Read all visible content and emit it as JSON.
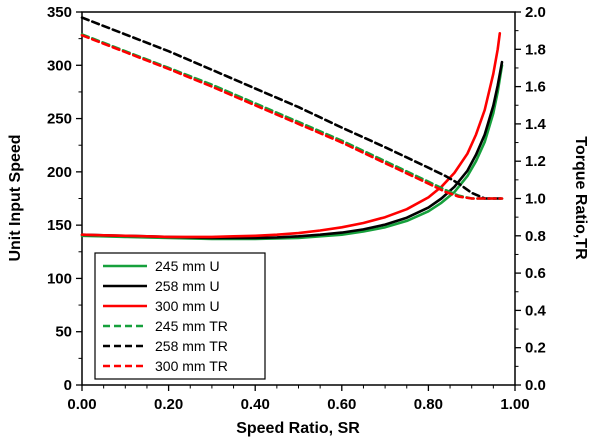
{
  "chart_data": {
    "type": "line",
    "title": "",
    "xlabel": "Speed Ratio, SR",
    "ylabel_left": "Unit Input Speed",
    "ylabel_right": "Torque Ratio,TR",
    "xlim": [
      0,
      1.0
    ],
    "ylim_left": [
      0,
      350
    ],
    "ylim_right": [
      0,
      2.0
    ],
    "grid": false,
    "legend_position": "lower-left",
    "colors": {
      "green": "#16a03c",
      "black": "#000000",
      "red": "#fe0000",
      "axis": "#000000",
      "background": "#ffffff"
    },
    "x_ticks": {
      "values": [
        0,
        0.2,
        0.4,
        0.6,
        0.8,
        1.0
      ],
      "labels": [
        "0.00",
        "0.20",
        "0.40",
        "0.60",
        "0.80",
        "1.00"
      ],
      "minor_step": 0.05
    },
    "y_ticks_left": {
      "values": [
        0,
        50,
        100,
        150,
        200,
        250,
        300,
        350
      ],
      "labels": [
        "0",
        "50",
        "100",
        "150",
        "200",
        "250",
        "300",
        "350"
      ],
      "minor_step": 25
    },
    "y_ticks_right": {
      "values": [
        0,
        0.2,
        0.4,
        0.6,
        0.8,
        1.0,
        1.2,
        1.4,
        1.6,
        1.8,
        2.0
      ],
      "labels": [
        "0.0",
        "0.2",
        "0.4",
        "0.6",
        "0.8",
        "1.0",
        "1.2",
        "1.4",
        "1.6",
        "1.8",
        "2.0"
      ],
      "minor_step": 0.1
    },
    "series": [
      {
        "name": "245 mm U",
        "color": "#16a03c",
        "style": "solid",
        "axis": "left",
        "x": [
          0,
          0.05,
          0.1,
          0.15,
          0.2,
          0.25,
          0.3,
          0.35,
          0.4,
          0.45,
          0.5,
          0.55,
          0.6,
          0.65,
          0.7,
          0.75,
          0.8,
          0.83,
          0.86,
          0.89,
          0.91,
          0.93,
          0.95,
          0.96,
          0.97
        ],
        "y": [
          140,
          139.5,
          139,
          138.5,
          138,
          137.5,
          137,
          137,
          137,
          137.5,
          138,
          139.5,
          141,
          144,
          148,
          154,
          163,
          171,
          181,
          196,
          210,
          228,
          255,
          275,
          300
        ]
      },
      {
        "name": "258 mm U",
        "color": "#000000",
        "style": "solid",
        "axis": "left",
        "x": [
          0,
          0.05,
          0.1,
          0.15,
          0.2,
          0.25,
          0.3,
          0.35,
          0.4,
          0.45,
          0.5,
          0.55,
          0.6,
          0.65,
          0.7,
          0.75,
          0.8,
          0.83,
          0.86,
          0.89,
          0.91,
          0.93,
          0.95,
          0.96,
          0.97
        ],
        "y": [
          141,
          140.5,
          140,
          139.5,
          139,
          138.5,
          138,
          138,
          138,
          138.5,
          139.5,
          141,
          143,
          146,
          150.5,
          157,
          166.5,
          175,
          186,
          201,
          216,
          235,
          262,
          281,
          303
        ]
      },
      {
        "name": "300 mm U",
        "color": "#fe0000",
        "style": "solid",
        "axis": "left",
        "x": [
          0,
          0.05,
          0.1,
          0.15,
          0.2,
          0.25,
          0.3,
          0.35,
          0.4,
          0.45,
          0.5,
          0.55,
          0.6,
          0.65,
          0.7,
          0.75,
          0.8,
          0.83,
          0.86,
          0.89,
          0.91,
          0.93,
          0.95,
          0.96,
          0.965
        ],
        "y": [
          141,
          140.5,
          140,
          139.5,
          139,
          139,
          139,
          139.5,
          140,
          141,
          142.5,
          145,
          148,
          152,
          157.5,
          165,
          176,
          186,
          199,
          217,
          235,
          258,
          292,
          315,
          330
        ]
      },
      {
        "name": "245 mm TR",
        "color": "#16a03c",
        "style": "dashed",
        "axis": "right",
        "x": [
          0,
          0.1,
          0.2,
          0.3,
          0.4,
          0.5,
          0.6,
          0.7,
          0.8,
          0.84,
          0.87,
          0.9,
          0.93,
          0.97
        ],
        "y": [
          1.88,
          1.79,
          1.7,
          1.61,
          1.51,
          1.41,
          1.31,
          1.2,
          1.09,
          1.045,
          1.015,
          1.0,
          1.0,
          1.0
        ]
      },
      {
        "name": "258 mm TR",
        "color": "#000000",
        "style": "dashed",
        "axis": "right",
        "x": [
          0,
          0.1,
          0.2,
          0.3,
          0.4,
          0.5,
          0.6,
          0.7,
          0.8,
          0.84,
          0.87,
          0.9,
          0.93,
          0.97
        ],
        "y": [
          1.97,
          1.88,
          1.79,
          1.69,
          1.59,
          1.49,
          1.38,
          1.275,
          1.165,
          1.12,
          1.08,
          1.03,
          1.0,
          1.0
        ]
      },
      {
        "name": "300 mm TR",
        "color": "#fe0000",
        "style": "dashed",
        "axis": "right",
        "x": [
          0,
          0.1,
          0.2,
          0.3,
          0.4,
          0.5,
          0.6,
          0.7,
          0.8,
          0.84,
          0.87,
          0.9,
          0.93,
          0.97
        ],
        "y": [
          1.875,
          1.785,
          1.695,
          1.6,
          1.5,
          1.4,
          1.3,
          1.19,
          1.08,
          1.035,
          1.01,
          1.0,
          1.0,
          1.0
        ]
      }
    ]
  }
}
